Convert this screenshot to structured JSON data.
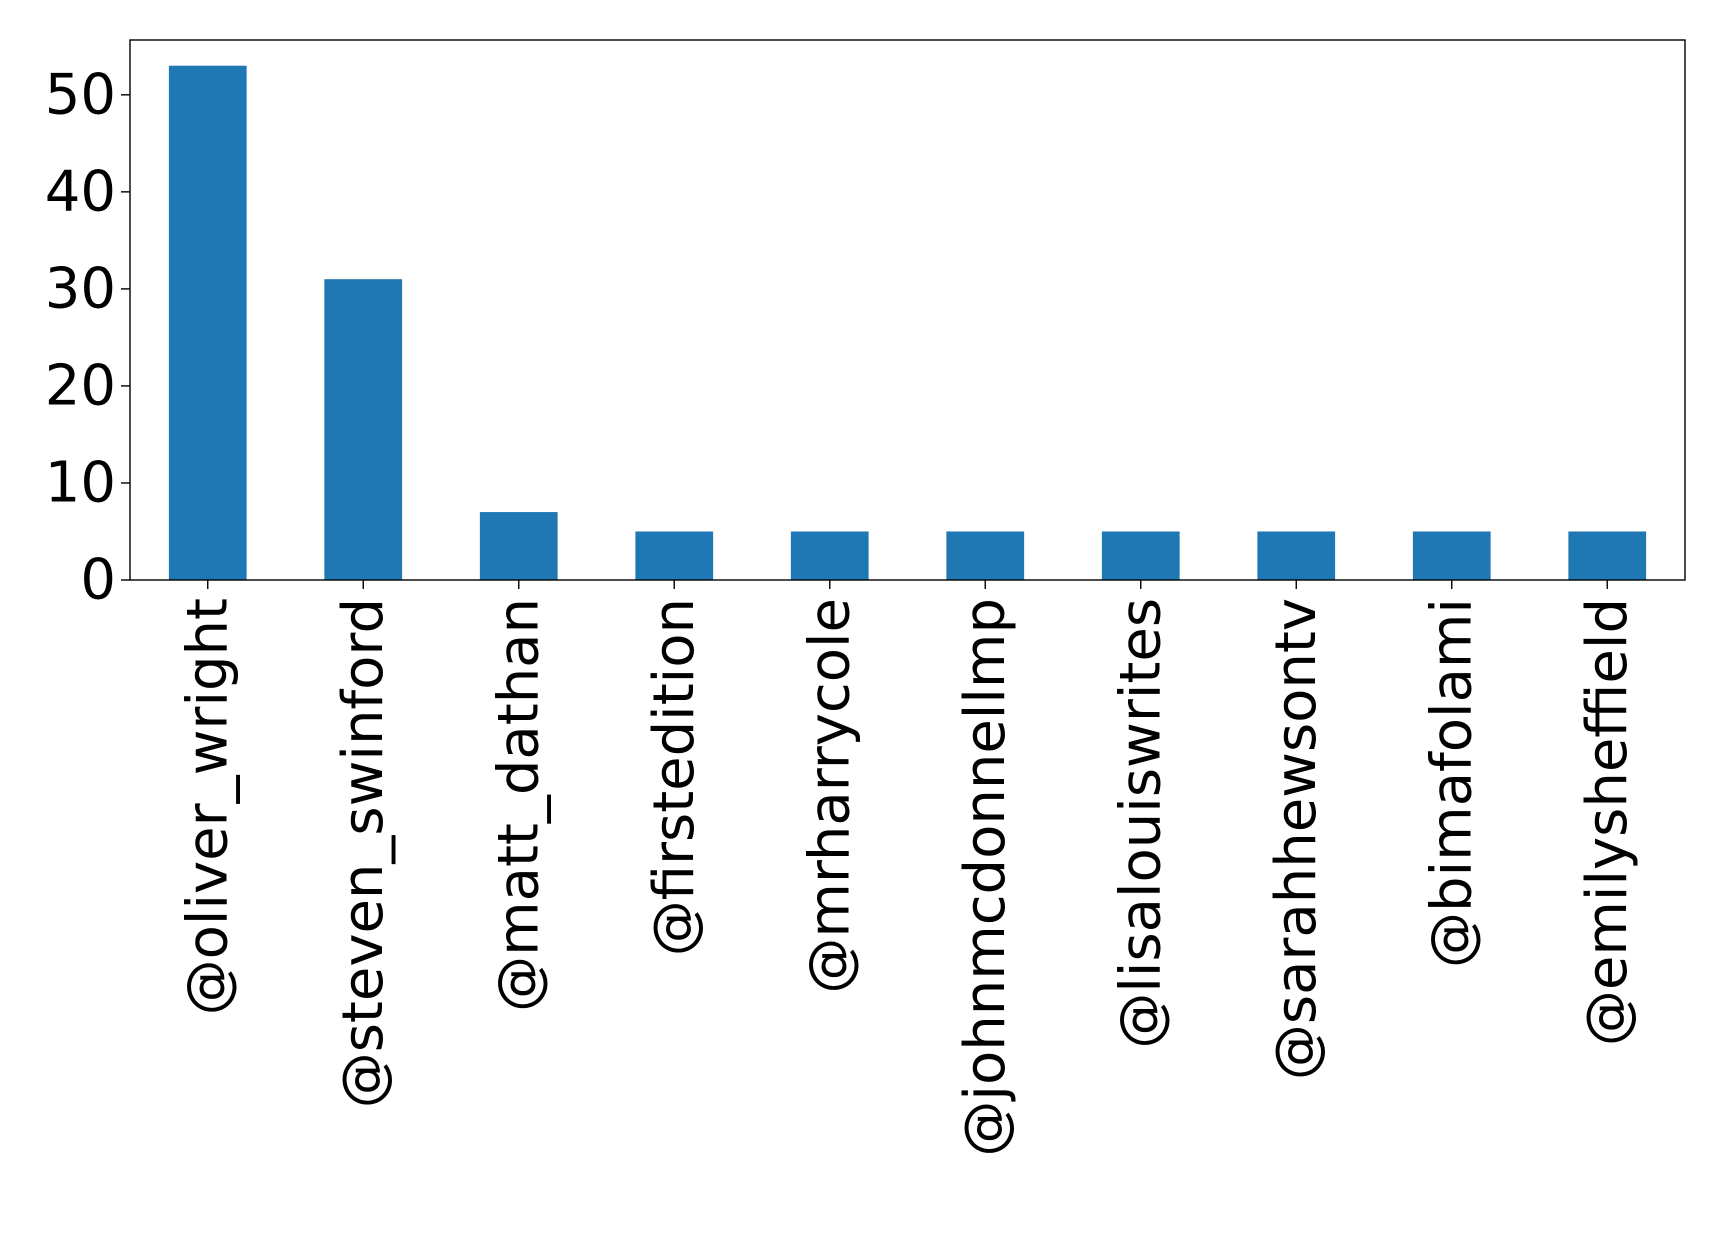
{
  "chart_data": {
    "type": "bar",
    "title": "",
    "xlabel": "",
    "ylabel": "",
    "categories": [
      "@oliver_wright",
      "@steven_swinford",
      "@matt_dathan",
      "@firstedition",
      "@mrharrycole",
      "@johnmcdonnellmp",
      "@lisalouiswrites",
      "@sarahhewsontv",
      "@bimafolami",
      "@emilysheffield"
    ],
    "values": [
      53,
      31,
      7,
      5,
      5,
      5,
      5,
      5,
      5,
      5
    ],
    "ylim": [
      0,
      55.65
    ],
    "yticks": [
      0,
      10,
      20,
      30,
      40,
      50
    ],
    "grid": false,
    "legend": "none",
    "colors": {
      "bar": "#1f77b4",
      "axes": "#000000",
      "background": "#ffffff"
    }
  }
}
